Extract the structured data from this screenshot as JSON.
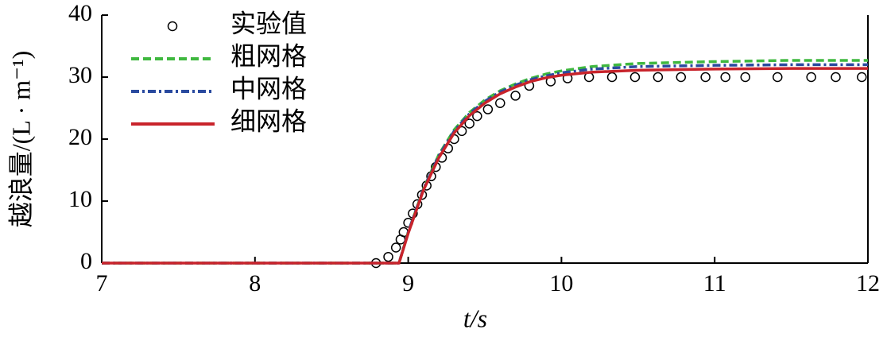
{
  "chart_data": {
    "type": "line",
    "xlabel": "t/s",
    "ylabel": "越浪量/(L · m⁻¹)",
    "xlim": [
      7,
      12
    ],
    "ylim": [
      0,
      40
    ],
    "xticks": [
      7,
      8,
      9,
      10,
      11,
      12
    ],
    "yticks": [
      0,
      10,
      20,
      30,
      40
    ],
    "series": [
      {
        "name": "实验值",
        "style": "circle",
        "color": "#000000",
        "x": [
          8.79,
          8.87,
          8.92,
          8.95,
          8.97,
          9.0,
          9.03,
          9.06,
          9.09,
          9.12,
          9.15,
          9.18,
          9.22,
          9.26,
          9.3,
          9.35,
          9.4,
          9.45,
          9.52,
          9.6,
          9.7,
          9.79,
          9.93,
          10.04,
          10.18,
          10.33,
          10.48,
          10.63,
          10.78,
          10.94,
          11.07,
          11.2,
          11.41,
          11.63,
          11.79,
          11.96
        ],
        "values": [
          0,
          1,
          2.5,
          3.8,
          5,
          6.5,
          8,
          9.5,
          11,
          12.5,
          14,
          15.5,
          17,
          18.5,
          20,
          21.3,
          22.5,
          23.7,
          24.8,
          25.8,
          27,
          28.6,
          29.3,
          29.8,
          30,
          30,
          30,
          30,
          30,
          30,
          30,
          30,
          30,
          30,
          30,
          30
        ]
      },
      {
        "name": "粗网格",
        "style": "dashed",
        "color": "#3fb83f",
        "x": [
          7,
          8.94,
          9.0,
          9.1,
          9.2,
          9.3,
          9.4,
          9.5,
          9.6,
          9.7,
          9.8,
          9.9,
          10.0,
          10.2,
          10.5,
          11,
          11.5,
          12
        ],
        "values": [
          0,
          0,
          5,
          12,
          17.5,
          21.5,
          24.3,
          26.3,
          27.8,
          28.9,
          29.8,
          30.5,
          31.0,
          31.7,
          32.2,
          32.5,
          32.7,
          32.7
        ]
      },
      {
        "name": "中网格",
        "style": "dashdot",
        "color": "#2a4a9f",
        "x": [
          7,
          8.94,
          9.0,
          9.1,
          9.2,
          9.3,
          9.4,
          9.5,
          9.6,
          9.7,
          9.8,
          9.9,
          10.0,
          10.2,
          10.5,
          11,
          11.5,
          12
        ],
        "values": [
          0,
          0,
          5,
          12,
          17.3,
          21.3,
          24.1,
          26.1,
          27.6,
          28.7,
          29.6,
          30.2,
          30.7,
          31.3,
          31.7,
          31.9,
          32.0,
          32.0
        ]
      },
      {
        "name": "细网格",
        "style": "solid",
        "color": "#c8232b",
        "x": [
          7,
          8.94,
          9.0,
          9.1,
          9.2,
          9.3,
          9.4,
          9.5,
          9.6,
          9.7,
          9.8,
          9.9,
          10.0,
          10.2,
          10.5,
          11,
          11.5,
          12
        ],
        "values": [
          0,
          0,
          4.8,
          11.8,
          17.0,
          21.0,
          23.8,
          25.8,
          27.3,
          28.4,
          29.3,
          29.9,
          30.3,
          30.8,
          31.1,
          31.3,
          31.4,
          31.4
        ]
      }
    ]
  }
}
